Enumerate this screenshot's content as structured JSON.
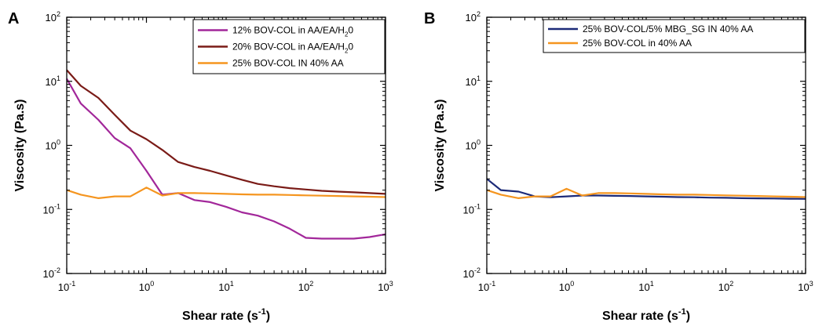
{
  "chart_data": [
    {
      "panel": "A",
      "type": "line",
      "xlabel": "Shear rate (s",
      "xlabel_exp": "-1",
      "xlabel_close": ")",
      "ylabel": "Viscosity (Pa.s)",
      "xscale": "log",
      "yscale": "log",
      "xlim": [
        0.1,
        1000
      ],
      "ylim": [
        0.01,
        100
      ],
      "legend_position": "top-right",
      "series": [
        {
          "name": "12% BOV-COL in AA/EA/H",
          "name_sub": "2",
          "name_tail": "0",
          "color": "#a2279a",
          "x": [
            0.1,
            0.15,
            0.25,
            0.4,
            0.63,
            1.0,
            1.58,
            2.5,
            4.0,
            6.3,
            10,
            15.8,
            25,
            40,
            63,
            100,
            158,
            250,
            400,
            630,
            1000
          ],
          "y": [
            11,
            4.5,
            2.5,
            1.3,
            0.9,
            0.4,
            0.17,
            0.18,
            0.14,
            0.13,
            0.11,
            0.09,
            0.08,
            0.065,
            0.05,
            0.036,
            0.035,
            0.035,
            0.035,
            0.037,
            0.041
          ]
        },
        {
          "name": "20% BOV-COL in AA/EA/H",
          "name_sub": "2",
          "name_tail": "0",
          "color": "#7a1b17",
          "x": [
            0.1,
            0.15,
            0.25,
            0.4,
            0.63,
            1.0,
            1.58,
            2.5,
            4.0,
            6.3,
            10,
            15.8,
            25,
            40,
            63,
            100,
            158,
            250,
            400,
            630,
            1000
          ],
          "y": [
            15,
            8.5,
            5.5,
            3.0,
            1.7,
            1.25,
            0.85,
            0.55,
            0.46,
            0.4,
            0.34,
            0.29,
            0.25,
            0.23,
            0.215,
            0.205,
            0.195,
            0.19,
            0.185,
            0.18,
            0.175
          ]
        },
        {
          "name": "25% BOV-COL IN 40% AA",
          "color": "#f5951f",
          "x": [
            0.1,
            0.15,
            0.25,
            0.4,
            0.63,
            1.0,
            1.58,
            2.5,
            4.0,
            6.3,
            10,
            15.8,
            25,
            40,
            63,
            100,
            158,
            250,
            400,
            630,
            1000
          ],
          "y": [
            0.2,
            0.17,
            0.15,
            0.16,
            0.16,
            0.22,
            0.165,
            0.18,
            0.18,
            0.178,
            0.175,
            0.172,
            0.17,
            0.17,
            0.168,
            0.166,
            0.164,
            0.162,
            0.16,
            0.158,
            0.156
          ]
        }
      ]
    },
    {
      "panel": "B",
      "type": "line",
      "xlabel": "Shear rate (s",
      "xlabel_exp": "-1",
      "xlabel_close": ")",
      "ylabel": "Viscosity (Pa.s)",
      "xscale": "log",
      "yscale": "log",
      "xlim": [
        0.1,
        1000
      ],
      "ylim": [
        0.01,
        100
      ],
      "legend_position": "top-right",
      "series": [
        {
          "name": "25% BOV-COL/5% MBG_SG IN 40% AA",
          "color": "#1c2a78",
          "x": [
            0.1,
            0.15,
            0.25,
            0.4,
            0.63,
            1.0,
            1.58,
            2.5,
            4.0,
            6.3,
            10,
            15.8,
            25,
            40,
            63,
            100,
            158,
            250,
            400,
            630,
            1000
          ],
          "y": [
            0.3,
            0.2,
            0.19,
            0.16,
            0.155,
            0.16,
            0.165,
            0.165,
            0.163,
            0.162,
            0.16,
            0.158,
            0.156,
            0.155,
            0.153,
            0.152,
            0.15,
            0.149,
            0.148,
            0.147,
            0.146
          ]
        },
        {
          "name": "25% BOV-COL in 40% AA",
          "color": "#f5951f",
          "x": [
            0.1,
            0.15,
            0.25,
            0.4,
            0.63,
            1.0,
            1.58,
            2.5,
            4.0,
            6.3,
            10,
            15.8,
            25,
            40,
            63,
            100,
            158,
            250,
            400,
            630,
            1000
          ],
          "y": [
            0.2,
            0.17,
            0.15,
            0.16,
            0.16,
            0.21,
            0.165,
            0.18,
            0.18,
            0.178,
            0.175,
            0.172,
            0.17,
            0.17,
            0.168,
            0.166,
            0.164,
            0.162,
            0.16,
            0.158,
            0.156
          ]
        }
      ]
    }
  ]
}
